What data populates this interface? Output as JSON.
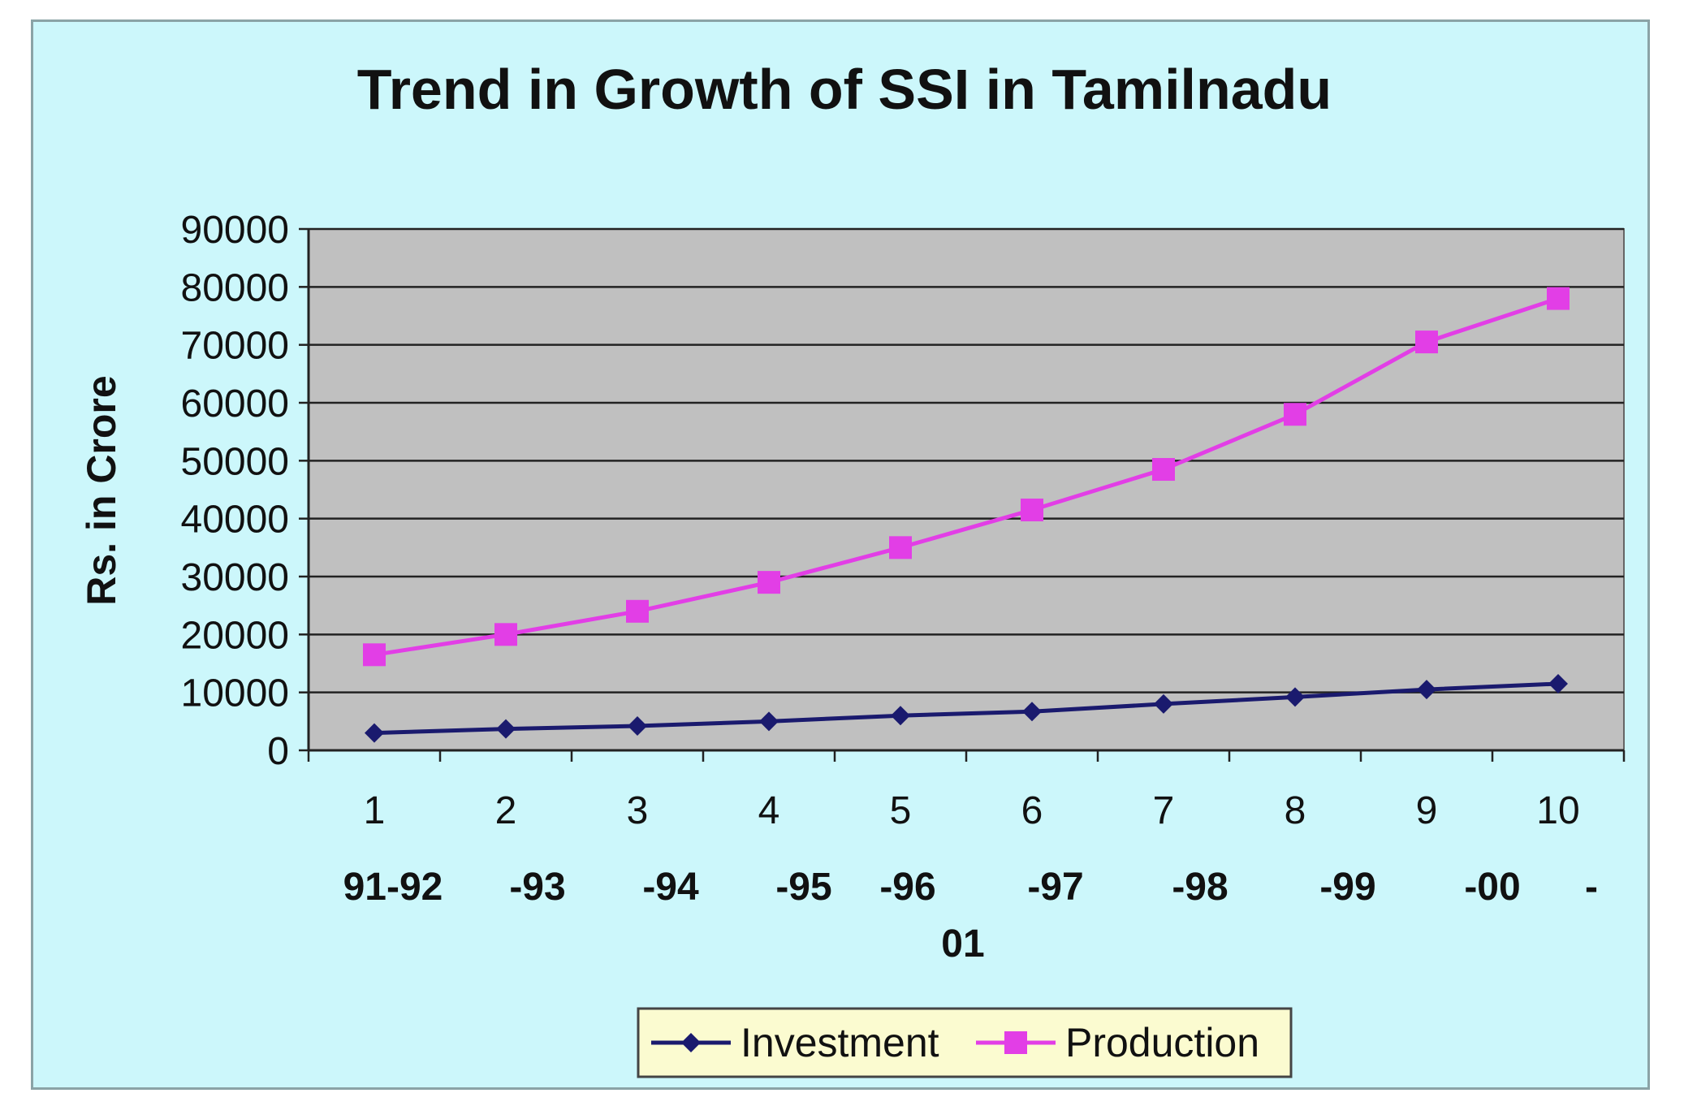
{
  "chart_data": {
    "type": "line",
    "title": "Trend in Growth of SSI in Tamilnadu",
    "xlabel": "",
    "ylabel": "Rs. in Crore",
    "ylim": [
      0,
      90000
    ],
    "yticks": [
      "0",
      "10000",
      "20000",
      "30000",
      "40000",
      "50000",
      "60000",
      "70000",
      "80000",
      "90000"
    ],
    "categories": [
      "1",
      "2",
      "3",
      "4",
      "5",
      "6",
      "7",
      "8",
      "9",
      "10"
    ],
    "year_labels": [
      "91-92",
      "-93",
      "-94",
      "-95",
      "-96",
      "-97",
      "-98",
      "-99",
      "-00",
      "-",
      "01"
    ],
    "grid": true,
    "legend_position": "bottom",
    "series": [
      {
        "name": "Investment",
        "color": "#1a1a6e",
        "marker": "diamond",
        "values": [
          3000,
          3700,
          4200,
          5000,
          6000,
          6700,
          8000,
          9200,
          10500,
          11500
        ]
      },
      {
        "name": "Production",
        "color": "#e23ee6",
        "marker": "square",
        "values": [
          16500,
          20000,
          24000,
          29000,
          35000,
          41500,
          48500,
          58000,
          70500,
          78000
        ]
      }
    ],
    "colors": {
      "background": "#ccf7fb",
      "plot_area": "#c0c0c0",
      "legend_background": "#fbfbd0"
    }
  }
}
